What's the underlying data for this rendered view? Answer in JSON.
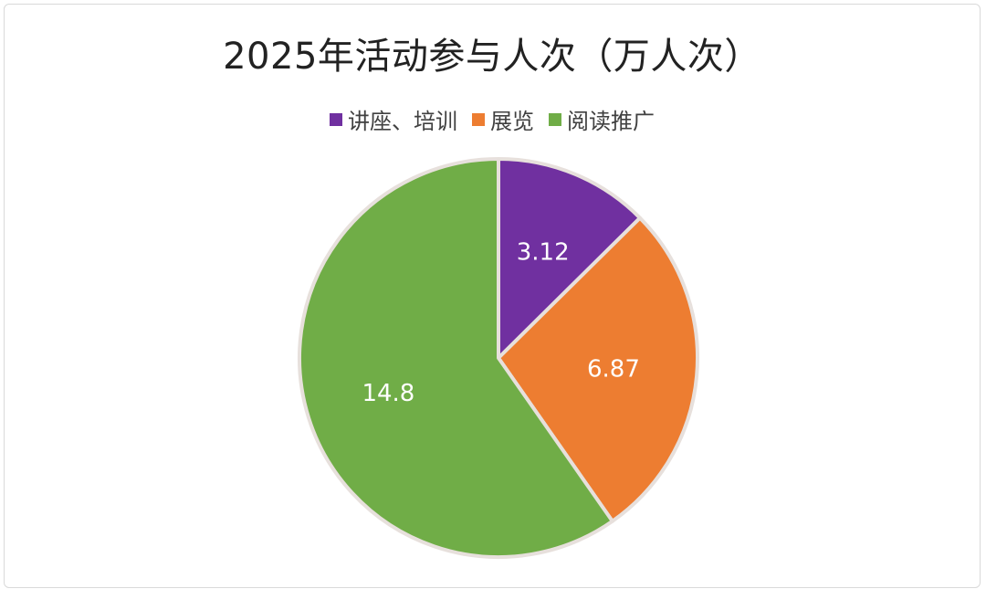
{
  "chart_data": {
    "type": "pie",
    "title": "2025年活动参与人次（万人次）",
    "categories": [
      "讲座、培训",
      "展览",
      "阅读推广"
    ],
    "values": [
      3.12,
      6.87,
      14.8
    ],
    "value_labels": [
      "3.12",
      "6.87",
      "14.8"
    ],
    "colors": [
      "#7030a0",
      "#ed7d31",
      "#70ad47"
    ],
    "legend_position": "top",
    "start_angle": "12 o'clock",
    "direction": "clockwise"
  }
}
